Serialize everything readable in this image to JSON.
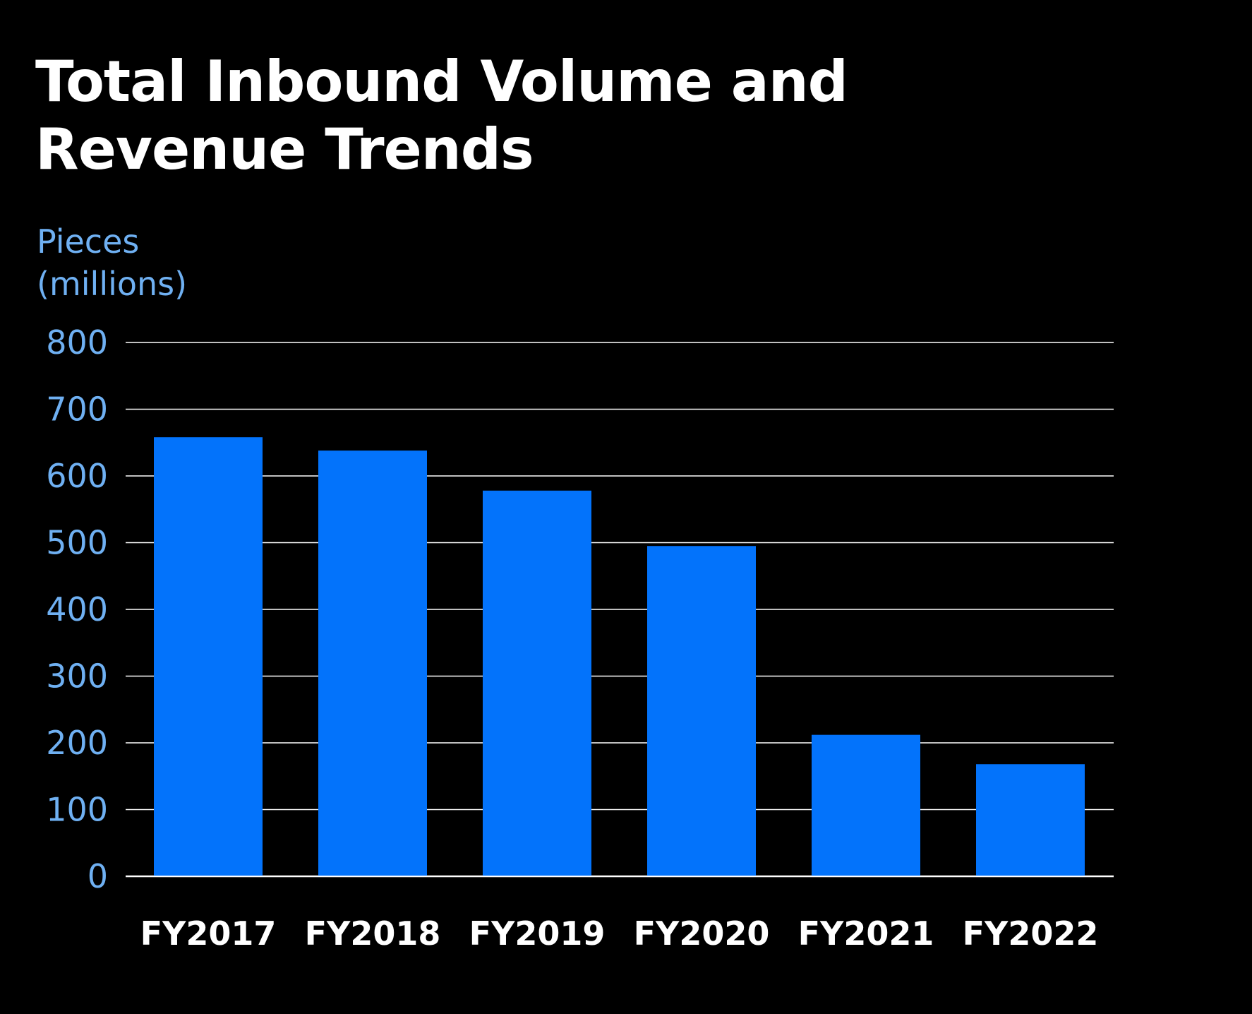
{
  "title_lines": [
    "Total Inbound Volume and",
    "Revenue Trends"
  ],
  "ylabel_lines": [
    "Pieces",
    "(millions)"
  ],
  "colors": {
    "background": "#000000",
    "bar": "#0373fb",
    "tick_label": "#6fb0f2",
    "category_label": "#ffffff",
    "grid": "#ffffff"
  },
  "chart_data": {
    "type": "bar",
    "title": "Total Inbound Volume and Revenue Trends",
    "ylabel": "Pieces (millions)",
    "xlabel": "",
    "categories": [
      "FY2017",
      "FY2018",
      "FY2019",
      "FY2020",
      "FY2021",
      "FY2022"
    ],
    "values": [
      658,
      638,
      578,
      495,
      212,
      168
    ],
    "ylim": [
      0,
      800
    ],
    "yticks": [
      0,
      100,
      200,
      300,
      400,
      500,
      600,
      700,
      800
    ],
    "grid": true,
    "legend": "none"
  }
}
